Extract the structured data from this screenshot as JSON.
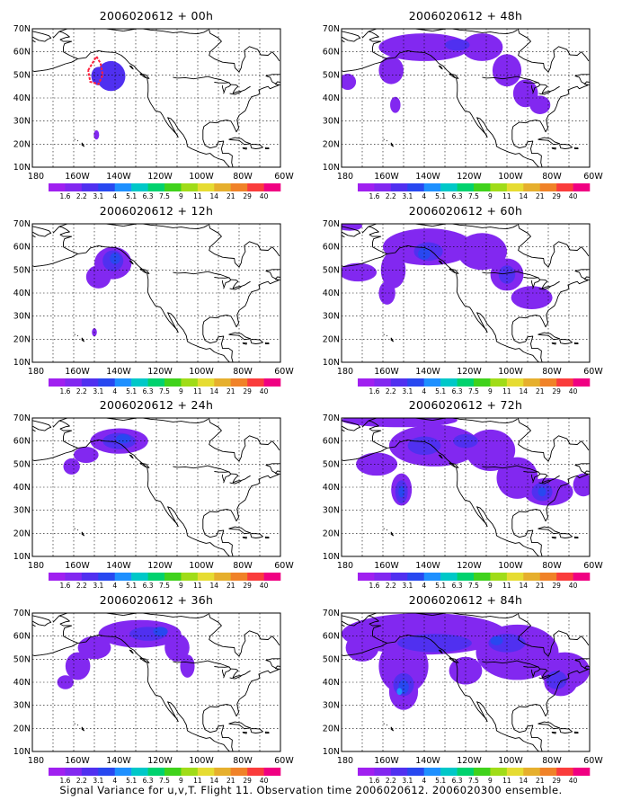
{
  "caption": "Signal Variance for u,v,T. Flight 11. Observation time 2006020612. 2006020300 ensemble.",
  "chart_data": [
    {
      "type": "heatmap",
      "title": "2006020612 + 00h",
      "x_ticks": [
        "180",
        "160W",
        "140W",
        "120W",
        "100W",
        "80W",
        "60W"
      ],
      "y_ticks": [
        "10N",
        "20N",
        "30N",
        "40N",
        "50N",
        "60N",
        "70N"
      ],
      "xlim": [
        -180,
        -60
      ],
      "ylim": [
        10,
        70
      ],
      "grid": true,
      "colorbar": {
        "levels": [
          "1.6",
          "2.2",
          "3.1",
          "4",
          "5.1",
          "6.3",
          "7.5",
          "9",
          "11",
          "14",
          "21",
          "29",
          "40"
        ],
        "colors": [
          "#a020f0",
          "#8228f0",
          "#5030f0",
          "#2848f0",
          "#1e90ff",
          "#00c8c8",
          "#00d26e",
          "#40d21c",
          "#a0dc18",
          "#e6dc32",
          "#e6af2d",
          "#f08228",
          "#fa3c3c",
          "#f00082"
        ]
      },
      "contours": [
        {
          "lon": -142,
          "lat": 49.5,
          "rlon": 7,
          "rlat": 6.5,
          "level": 2
        },
        {
          "lon": -148,
          "lat": 49.5,
          "rlon": 3.5,
          "rlat": 4,
          "level": 2
        },
        {
          "lon": -149,
          "lat": 24,
          "rlon": 1.3,
          "rlat": 2,
          "level": 1
        }
      ],
      "outlines": [
        {
          "color": "#ff1e3c",
          "points": [
            [
              -153,
              52
            ],
            [
              -149,
              58
            ],
            [
              -147,
              55
            ],
            [
              -146,
              50
            ],
            [
              -148,
              46
            ],
            [
              -152,
              47
            ],
            [
              -153,
              52
            ]
          ]
        }
      ]
    },
    {
      "type": "heatmap",
      "title": "2006020612 + 12h",
      "x_ticks": [
        "180",
        "160W",
        "140W",
        "120W",
        "100W",
        "80W",
        "60W"
      ],
      "y_ticks": [
        "10N",
        "20N",
        "30N",
        "40N",
        "50N",
        "60N",
        "70N"
      ],
      "xlim": [
        -180,
        -60
      ],
      "ylim": [
        10,
        70
      ],
      "grid": true,
      "colorbar": {
        "levels": [
          "1.6",
          "2.2",
          "3.1",
          "4",
          "5.1",
          "6.3",
          "7.5",
          "9",
          "11",
          "14",
          "21",
          "29",
          "40"
        ],
        "colors": [
          "#a020f0",
          "#8228f0",
          "#5030f0",
          "#2848f0",
          "#1e90ff",
          "#00c8c8",
          "#00d26e",
          "#40d21c",
          "#a0dc18",
          "#e6dc32",
          "#e6af2d",
          "#f08228",
          "#fa3c3c",
          "#f00082"
        ]
      },
      "contours": [
        {
          "lon": -141,
          "lat": 53,
          "rlon": 9,
          "rlat": 7,
          "level": 1
        },
        {
          "lon": -148,
          "lat": 47,
          "rlon": 6,
          "rlat": 5,
          "level": 1
        },
        {
          "lon": -141,
          "lat": 54,
          "rlon": 5,
          "rlat": 4.5,
          "level": 2
        },
        {
          "lon": -140,
          "lat": 55,
          "rlon": 2.5,
          "rlat": 2.5,
          "level": 3
        },
        {
          "lon": -150,
          "lat": 23,
          "rlon": 1.2,
          "rlat": 1.8,
          "level": 1
        }
      ],
      "outlines": []
    },
    {
      "type": "heatmap",
      "title": "2006020612 + 24h",
      "x_ticks": [
        "180",
        "160W",
        "140W",
        "120W",
        "100W",
        "80W",
        "60W"
      ],
      "y_ticks": [
        "10N",
        "20N",
        "30N",
        "40N",
        "50N",
        "60N",
        "70N"
      ],
      "xlim": [
        -180,
        -60
      ],
      "ylim": [
        10,
        70
      ],
      "grid": true,
      "colorbar": {
        "levels": [
          "1.6",
          "2.2",
          "3.1",
          "4",
          "5.1",
          "6.3",
          "7.5",
          "9",
          "11",
          "14",
          "21",
          "29",
          "40"
        ],
        "colors": [
          "#a020f0",
          "#8228f0",
          "#5030f0",
          "#2848f0",
          "#1e90ff",
          "#00c8c8",
          "#00d26e",
          "#40d21c",
          "#a0dc18",
          "#e6dc32",
          "#e6af2d",
          "#f08228",
          "#fa3c3c",
          "#f00082"
        ]
      },
      "contours": [
        {
          "lon": -138,
          "lat": 60,
          "rlon": 14,
          "rlat": 5.5,
          "level": 1
        },
        {
          "lon": -154,
          "lat": 54,
          "rlon": 6,
          "rlat": 3.5,
          "level": 1
        },
        {
          "lon": -161,
          "lat": 49,
          "rlon": 4,
          "rlat": 3.5,
          "level": 1
        },
        {
          "lon": -138,
          "lat": 60,
          "rlon": 8,
          "rlat": 3.5,
          "level": 2
        },
        {
          "lon": -136,
          "lat": 61,
          "rlon": 3.5,
          "rlat": 2,
          "level": 3
        }
      ],
      "outlines": []
    },
    {
      "type": "heatmap",
      "title": "2006020612 + 36h",
      "x_ticks": [
        "180",
        "160W",
        "140W",
        "120W",
        "100W",
        "80W",
        "60W"
      ],
      "y_ticks": [
        "10N",
        "20N",
        "30N",
        "40N",
        "50N",
        "60N",
        "70N"
      ],
      "xlim": [
        -180,
        -60
      ],
      "ylim": [
        10,
        70
      ],
      "grid": true,
      "colorbar": {
        "levels": [
          "1.6",
          "2.2",
          "3.1",
          "4",
          "5.1",
          "6.3",
          "7.5",
          "9",
          "11",
          "14",
          "21",
          "29",
          "40"
        ],
        "colors": [
          "#a020f0",
          "#8228f0",
          "#5030f0",
          "#2848f0",
          "#1e90ff",
          "#00c8c8",
          "#00d26e",
          "#40d21c",
          "#a0dc18",
          "#e6dc32",
          "#e6af2d",
          "#f08228",
          "#fa3c3c",
          "#f00082"
        ]
      },
      "contours": [
        {
          "lon": -128,
          "lat": 61,
          "rlon": 20,
          "rlat": 6,
          "level": 1
        },
        {
          "lon": -150,
          "lat": 55,
          "rlon": 8,
          "rlat": 5,
          "level": 1
        },
        {
          "lon": -158,
          "lat": 47,
          "rlon": 6,
          "rlat": 6,
          "level": 1
        },
        {
          "lon": -164,
          "lat": 40,
          "rlon": 4,
          "rlat": 3,
          "level": 1
        },
        {
          "lon": -110,
          "lat": 55,
          "rlon": 6,
          "rlat": 6,
          "level": 1
        },
        {
          "lon": -105,
          "lat": 47,
          "rlon": 3.5,
          "rlat": 5,
          "level": 1
        },
        {
          "lon": -124,
          "lat": 61,
          "rlon": 9,
          "rlat": 3,
          "level": 2
        },
        {
          "lon": -118,
          "lat": 62,
          "rlon": 3.5,
          "rlat": 2,
          "level": 3
        }
      ],
      "outlines": []
    },
    {
      "type": "heatmap",
      "title": "2006020612 + 48h",
      "x_ticks": [
        "180",
        "160W",
        "140W",
        "120W",
        "100W",
        "80W",
        "60W"
      ],
      "y_ticks": [
        "10N",
        "20N",
        "30N",
        "40N",
        "50N",
        "60N",
        "70N"
      ],
      "xlim": [
        -180,
        -60
      ],
      "ylim": [
        10,
        70
      ],
      "grid": true,
      "colorbar": {
        "levels": [
          "1.6",
          "2.2",
          "3.1",
          "4",
          "5.1",
          "6.3",
          "7.5",
          "9",
          "11",
          "14",
          "21",
          "29",
          "40"
        ],
        "colors": [
          "#a020f0",
          "#8228f0",
          "#5030f0",
          "#2848f0",
          "#1e90ff",
          "#00c8c8",
          "#00d26e",
          "#40d21c",
          "#a0dc18",
          "#e6dc32",
          "#e6af2d",
          "#f08228",
          "#fa3c3c",
          "#f00082"
        ]
      },
      "contours": [
        {
          "lon": -140,
          "lat": 62,
          "rlon": 22,
          "rlat": 6,
          "level": 1
        },
        {
          "lon": -112,
          "lat": 62,
          "rlon": 10,
          "rlat": 6,
          "level": 1
        },
        {
          "lon": -156,
          "lat": 52,
          "rlon": 6,
          "rlat": 6,
          "level": 1
        },
        {
          "lon": -100,
          "lat": 52,
          "rlon": 7,
          "rlat": 7,
          "level": 1
        },
        {
          "lon": -91,
          "lat": 42,
          "rlon": 6,
          "rlat": 6,
          "level": 1
        },
        {
          "lon": -84,
          "lat": 37,
          "rlon": 5,
          "rlat": 4,
          "level": 1
        },
        {
          "lon": -177,
          "lat": 47,
          "rlon": 4,
          "rlat": 3.5,
          "level": 1
        },
        {
          "lon": -154,
          "lat": 37,
          "rlon": 2.5,
          "rlat": 3.5,
          "level": 1
        },
        {
          "lon": -124,
          "lat": 63,
          "rlon": 6,
          "rlat": 2.5,
          "level": 2
        }
      ],
      "outlines": []
    },
    {
      "type": "heatmap",
      "title": "2006020612 + 60h",
      "x_ticks": [
        "180",
        "160W",
        "140W",
        "120W",
        "100W",
        "80W",
        "60W"
      ],
      "y_ticks": [
        "10N",
        "20N",
        "30N",
        "40N",
        "50N",
        "60N",
        "70N"
      ],
      "xlim": [
        -180,
        -60
      ],
      "ylim": [
        10,
        70
      ],
      "grid": true,
      "colorbar": {
        "levels": [
          "1.6",
          "2.2",
          "3.1",
          "4",
          "5.1",
          "6.3",
          "7.5",
          "9",
          "11",
          "14",
          "21",
          "29",
          "40"
        ],
        "colors": [
          "#a020f0",
          "#8228f0",
          "#5030f0",
          "#2848f0",
          "#1e90ff",
          "#00c8c8",
          "#00d26e",
          "#40d21c",
          "#a0dc18",
          "#e6dc32",
          "#e6af2d",
          "#f08228",
          "#fa3c3c",
          "#f00082"
        ]
      },
      "contours": [
        {
          "lon": -138,
          "lat": 60,
          "rlon": 22,
          "rlat": 8,
          "level": 1
        },
        {
          "lon": -112,
          "lat": 58,
          "rlon": 12,
          "rlat": 8,
          "level": 1
        },
        {
          "lon": -155,
          "lat": 50,
          "rlon": 6,
          "rlat": 8,
          "level": 1
        },
        {
          "lon": -158,
          "lat": 40,
          "rlon": 4,
          "rlat": 5,
          "level": 1
        },
        {
          "lon": -100,
          "lat": 48,
          "rlon": 8,
          "rlat": 7,
          "level": 1
        },
        {
          "lon": -88,
          "lat": 38,
          "rlon": 10,
          "rlat": 5,
          "level": 1
        },
        {
          "lon": -172,
          "lat": 49,
          "rlon": 9,
          "rlat": 4,
          "level": 1
        },
        {
          "lon": -176,
          "lat": 69,
          "rlon": 6,
          "rlat": 2,
          "level": 1
        },
        {
          "lon": -138,
          "lat": 58,
          "rlon": 7,
          "rlat": 4,
          "level": 2
        },
        {
          "lon": -100,
          "lat": 48,
          "rlon": 4,
          "rlat": 4,
          "level": 2
        },
        {
          "lon": -140,
          "lat": 57,
          "rlon": 3,
          "rlat": 2.5,
          "level": 3
        }
      ],
      "outlines": []
    },
    {
      "type": "heatmap",
      "title": "2006020612 + 72h",
      "x_ticks": [
        "180",
        "160W",
        "140W",
        "120W",
        "100W",
        "80W",
        "60W"
      ],
      "y_ticks": [
        "10N",
        "20N",
        "30N",
        "40N",
        "50N",
        "60N",
        "70N"
      ],
      "xlim": [
        -180,
        -60
      ],
      "ylim": [
        10,
        70
      ],
      "grid": true,
      "colorbar": {
        "levels": [
          "1.6",
          "2.2",
          "3.1",
          "4",
          "5.1",
          "6.3",
          "7.5",
          "9",
          "11",
          "14",
          "21",
          "29",
          "40"
        ],
        "colors": [
          "#a020f0",
          "#8228f0",
          "#5030f0",
          "#2848f0",
          "#1e90ff",
          "#00c8c8",
          "#00d26e",
          "#40d21c",
          "#a0dc18",
          "#e6dc32",
          "#e6af2d",
          "#f08228",
          "#fa3c3c",
          "#f00082"
        ]
      },
      "contours": [
        {
          "lon": -152,
          "lat": 69,
          "rlon": 28,
          "rlat": 3,
          "level": 1
        },
        {
          "lon": -135,
          "lat": 58,
          "rlon": 22,
          "rlat": 9,
          "level": 1
        },
        {
          "lon": -108,
          "lat": 56,
          "rlon": 12,
          "rlat": 9,
          "level": 1
        },
        {
          "lon": -163,
          "lat": 50,
          "rlon": 10,
          "rlat": 5,
          "level": 1
        },
        {
          "lon": -151,
          "lat": 39,
          "rlon": 5,
          "rlat": 7,
          "level": 1
        },
        {
          "lon": -95,
          "lat": 44,
          "rlon": 10,
          "rlat": 9,
          "level": 1
        },
        {
          "lon": -80,
          "lat": 38,
          "rlon": 12,
          "rlat": 6,
          "level": 1
        },
        {
          "lon": -63,
          "lat": 41,
          "rlon": 5,
          "rlat": 5,
          "level": 1
        },
        {
          "lon": -140,
          "lat": 58,
          "rlon": 8,
          "rlat": 4,
          "level": 2
        },
        {
          "lon": -120,
          "lat": 60,
          "rlon": 6,
          "rlat": 3,
          "level": 2
        },
        {
          "lon": -151,
          "lat": 38,
          "rlon": 3,
          "rlat": 5,
          "level": 2
        },
        {
          "lon": -83,
          "lat": 38,
          "rlon": 5,
          "rlat": 4,
          "level": 2
        },
        {
          "lon": -151,
          "lat": 38,
          "rlon": 1.5,
          "rlat": 2.5,
          "level": 3
        },
        {
          "lon": -83,
          "lat": 38,
          "rlon": 2,
          "rlat": 2,
          "level": 3
        }
      ],
      "outlines": []
    },
    {
      "type": "heatmap",
      "title": "2006020612 + 84h",
      "x_ticks": [
        "180",
        "160W",
        "140W",
        "120W",
        "100W",
        "80W",
        "60W"
      ],
      "y_ticks": [
        "10N",
        "20N",
        "30N",
        "40N",
        "50N",
        "60N",
        "70N"
      ],
      "xlim": [
        -180,
        -60
      ],
      "ylim": [
        10,
        70
      ],
      "grid": true,
      "colorbar": {
        "levels": [
          "1.6",
          "2.2",
          "3.1",
          "4",
          "5.1",
          "6.3",
          "7.5",
          "9",
          "11",
          "14",
          "21",
          "29",
          "40"
        ],
        "colors": [
          "#a020f0",
          "#8228f0",
          "#5030f0",
          "#2848f0",
          "#1e90ff",
          "#00c8c8",
          "#00d26e",
          "#40d21c",
          "#a0dc18",
          "#e6dc32",
          "#e6af2d",
          "#f08228",
          "#fa3c3c",
          "#f00082"
        ]
      },
      "contours": [
        {
          "lon": -140,
          "lat": 61,
          "rlon": 40,
          "rlat": 9,
          "level": 1
        },
        {
          "lon": -95,
          "lat": 53,
          "rlon": 20,
          "rlat": 12,
          "level": 1
        },
        {
          "lon": -150,
          "lat": 47,
          "rlon": 12,
          "rlat": 12,
          "level": 1
        },
        {
          "lon": -150,
          "lat": 36,
          "rlon": 7,
          "rlat": 8,
          "level": 1
        },
        {
          "lon": -72,
          "lat": 45,
          "rlon": 12,
          "rlat": 8,
          "level": 1
        },
        {
          "lon": -120,
          "lat": 45,
          "rlon": 8,
          "rlat": 6,
          "level": 1
        },
        {
          "lon": -170,
          "lat": 55,
          "rlon": 8,
          "rlat": 6,
          "level": 1
        },
        {
          "lon": -74,
          "lat": 40,
          "rlon": 8,
          "rlat": 6,
          "level": 1
        },
        {
          "lon": -135,
          "lat": 57,
          "rlon": 18,
          "rlat": 4,
          "level": 2
        },
        {
          "lon": -100,
          "lat": 57,
          "rlon": 9,
          "rlat": 4,
          "level": 2
        },
        {
          "lon": -150,
          "lat": 39,
          "rlon": 5,
          "rlat": 5,
          "level": 2
        },
        {
          "lon": -76,
          "lat": 41,
          "rlon": 5,
          "rlat": 4,
          "level": 2
        },
        {
          "lon": -150,
          "lat": 38,
          "rlon": 2.5,
          "rlat": 3,
          "level": 3
        },
        {
          "lon": -152,
          "lat": 36,
          "rlon": 1.3,
          "rlat": 1.5,
          "level": 4
        },
        {
          "lon": -105,
          "lat": 58,
          "rlon": 3,
          "rlat": 2,
          "level": 3
        }
      ],
      "outlines": []
    }
  ]
}
